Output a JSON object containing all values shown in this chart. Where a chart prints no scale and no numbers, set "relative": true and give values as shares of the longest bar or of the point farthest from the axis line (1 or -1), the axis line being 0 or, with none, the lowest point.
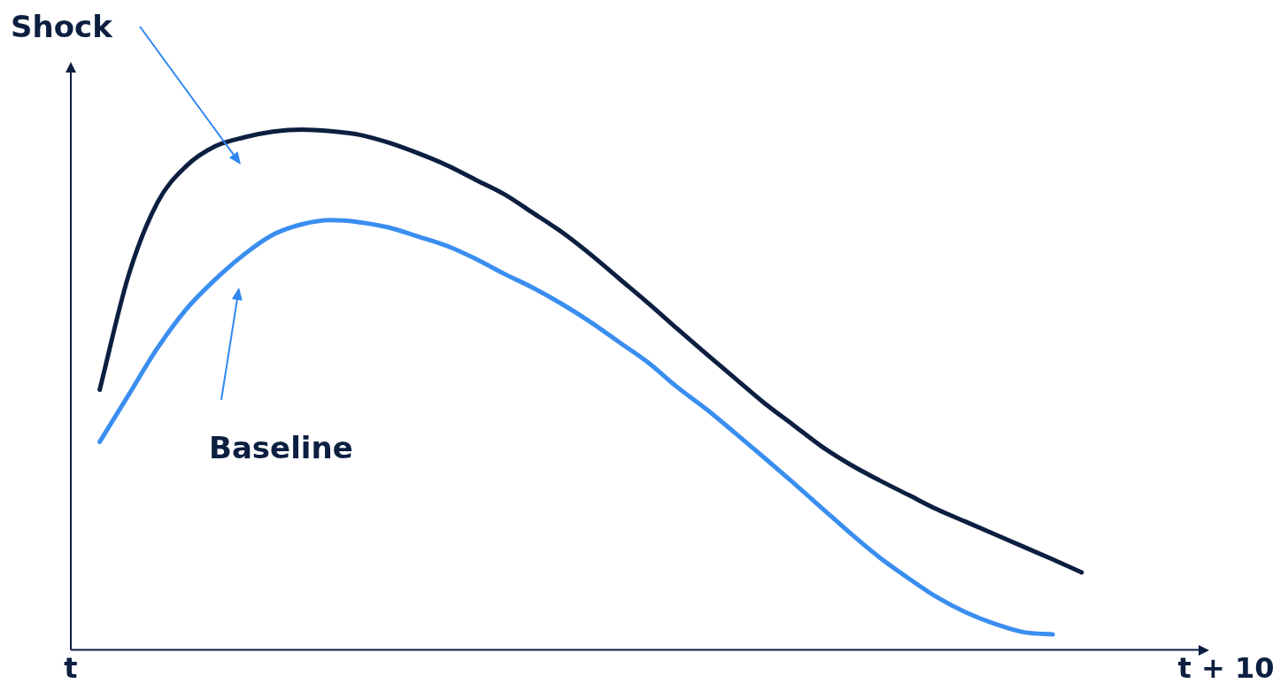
{
  "chart_data": {
    "type": "line",
    "relative": true,
    "legend": false,
    "grid": false,
    "marker": "none",
    "line_style": "solid",
    "categories": [
      "t",
      null,
      null,
      null,
      null,
      null,
      null,
      null,
      null,
      null,
      null,
      null,
      null,
      null,
      null,
      null,
      null,
      null,
      null,
      null,
      null,
      null,
      null,
      null,
      null,
      null,
      null,
      null,
      null,
      null,
      null,
      null,
      null,
      null,
      null,
      null,
      null,
      null,
      null,
      null,
      "t + 10"
    ],
    "series": [
      {
        "name": "Shock",
        "color": "#0d1f40",
        "values": [
          null,
          0.5,
          0.72,
          0.86,
          0.93,
          0.968,
          0.985,
          0.996,
          1,
          0.997,
          0.99,
          0.975,
          0.955,
          0.932,
          0.904,
          0.876,
          0.84,
          0.803,
          0.76,
          0.713,
          0.666,
          0.617,
          0.569,
          0.522,
          0.475,
          0.433,
          0.391,
          0.356,
          0.326,
          0.298,
          0.27,
          0.246,
          0.222,
          0.198,
          0.174,
          0.149,
          null,
          null,
          null,
          null,
          null
        ]
      },
      {
        "name": "Baseline",
        "color": "#3a8ef0",
        "values": [
          null,
          0.4,
          0.49,
          0.58,
          0.655,
          0.712,
          0.76,
          0.798,
          0.818,
          0.826,
          0.822,
          0.812,
          0.795,
          0.777,
          0.752,
          0.723,
          0.696,
          0.665,
          0.63,
          0.591,
          0.552,
          0.505,
          0.463,
          0.417,
          0.37,
          0.322,
          0.273,
          0.224,
          0.178,
          0.138,
          0.101,
          0.072,
          0.05,
          0.034,
          0.03,
          null,
          null,
          null,
          null,
          null,
          null
        ]
      }
    ]
  }
}
